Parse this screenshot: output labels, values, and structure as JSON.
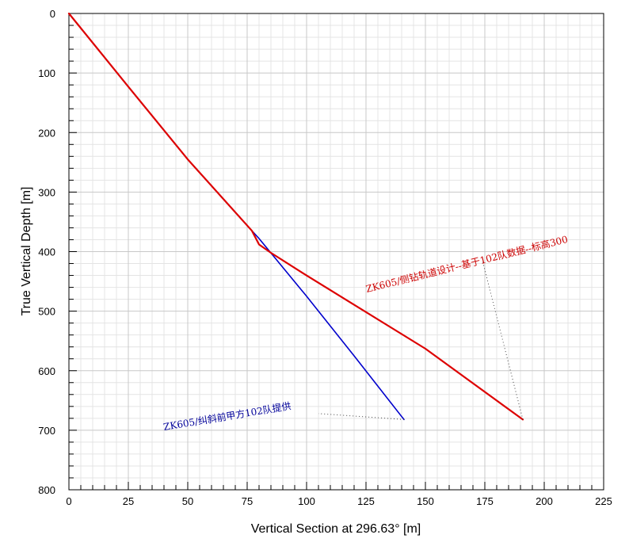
{
  "chart_data": {
    "type": "line",
    "xlabel": "Vertical Section at 296.63° [m]",
    "ylabel": "True Vertical Depth [m]",
    "xlim": [
      0,
      225
    ],
    "ylim": [
      0,
      800
    ],
    "y_inverted": true,
    "x_ticks": [
      0,
      25,
      50,
      75,
      100,
      125,
      150,
      175,
      200,
      225
    ],
    "y_ticks": [
      0,
      100,
      200,
      300,
      400,
      500,
      600,
      700,
      800
    ],
    "grid": true,
    "colors": {
      "red": "#dd0000",
      "blue": "#0000cc",
      "grid": "#c8c8c8",
      "axis": "#000000"
    },
    "series": [
      {
        "color": "#dd0000",
        "x": [
          0,
          25,
          50,
          77,
          80,
          85,
          100,
          150,
          191
        ],
        "y": [
          0,
          123,
          245,
          365,
          388,
          402,
          440,
          563,
          682
        ]
      },
      {
        "color": "#0000cc",
        "x": [
          0,
          25,
          50,
          77,
          80,
          100,
          120,
          141
        ],
        "y": [
          0,
          123,
          245,
          365,
          378,
          475,
          575,
          682
        ]
      }
    ],
    "annotations": [
      {
        "text": "ZK605/侧钻轨道设计--基于102队数据--标高300",
        "color": "#cc0000",
        "point": [
          191,
          682
        ],
        "anchor": [
          174,
          415
        ]
      },
      {
        "text": "ZK605/纠斜前甲方102队提供",
        "color": "#000099",
        "point": [
          141,
          682
        ],
        "anchor": [
          105,
          672
        ]
      }
    ]
  }
}
